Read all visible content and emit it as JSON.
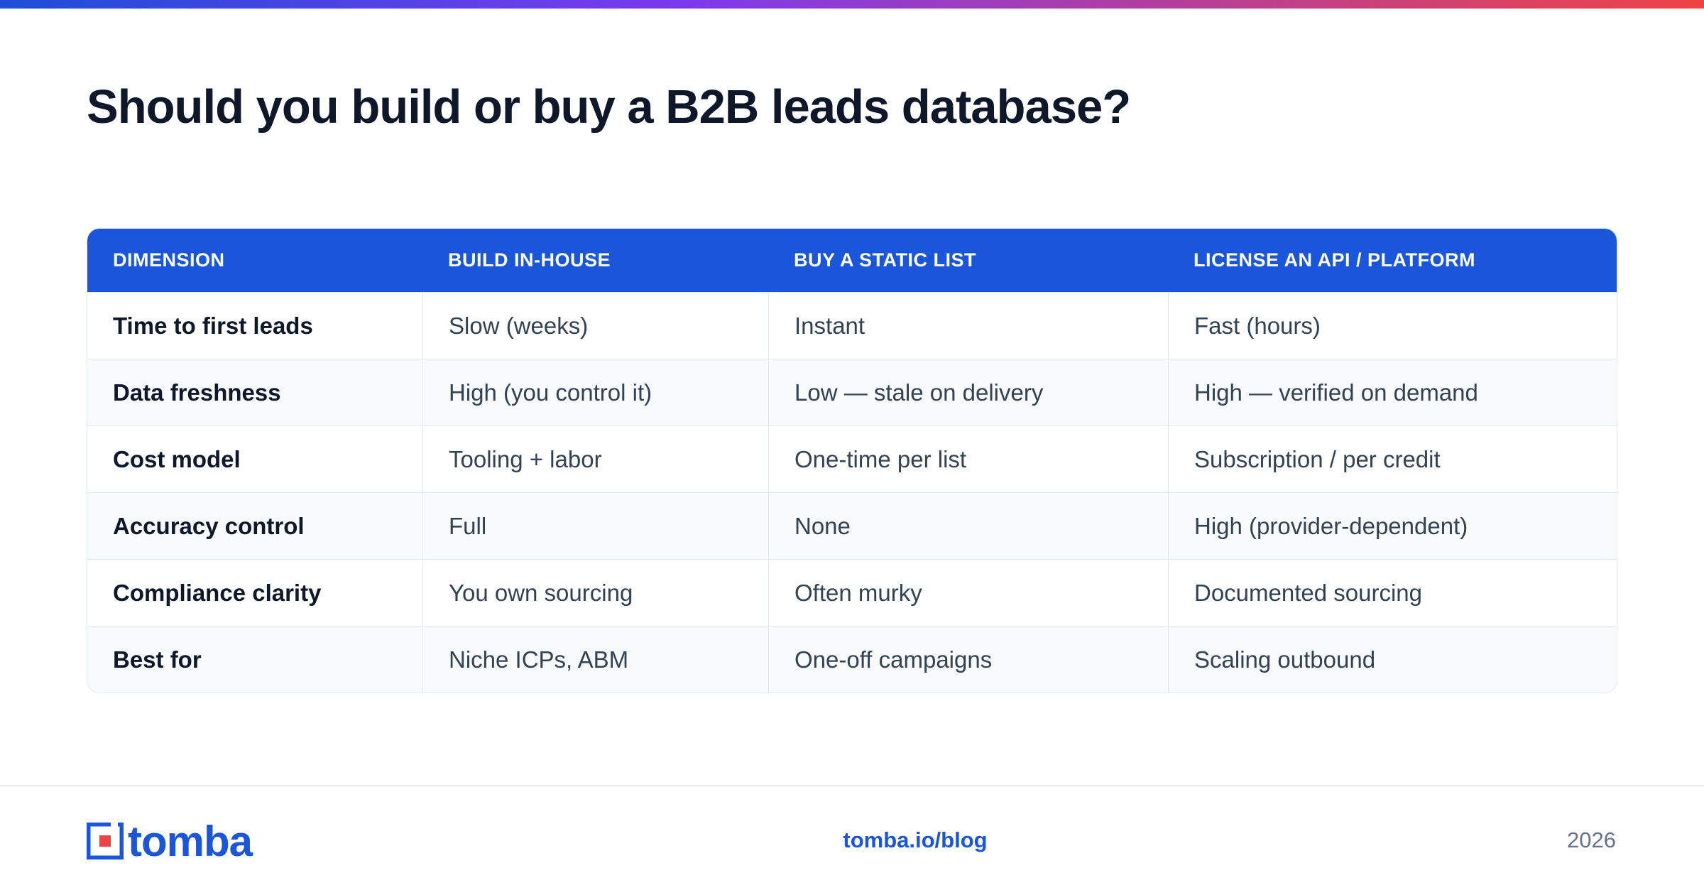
{
  "header": {
    "title": "Should you build or buy a B2B leads database?"
  },
  "table": {
    "columns": [
      "DIMENSION",
      "BUILD IN-HOUSE",
      "BUY A STATIC LIST",
      "LICENSE AN API / PLATFORM"
    ],
    "rows": [
      [
        "Time to first leads",
        "Slow (weeks)",
        "Instant",
        "Fast (hours)"
      ],
      [
        "Data freshness",
        "High (you control it)",
        "Low — stale on delivery",
        "High — verified on demand"
      ],
      [
        "Cost model",
        "Tooling + labor",
        "One-time per list",
        "Subscription / per credit"
      ],
      [
        "Accuracy control",
        "Full",
        "None",
        "High (provider-dependent)"
      ],
      [
        "Compliance clarity",
        "You own sourcing",
        "Often murky",
        "Documented sourcing"
      ],
      [
        "Best for",
        "Niche ICPs, ABM",
        "One-off campaigns",
        "Scaling outbound"
      ]
    ]
  },
  "footer": {
    "logo": "tomba",
    "link": "tomba.io/blog",
    "year": "2026"
  }
}
